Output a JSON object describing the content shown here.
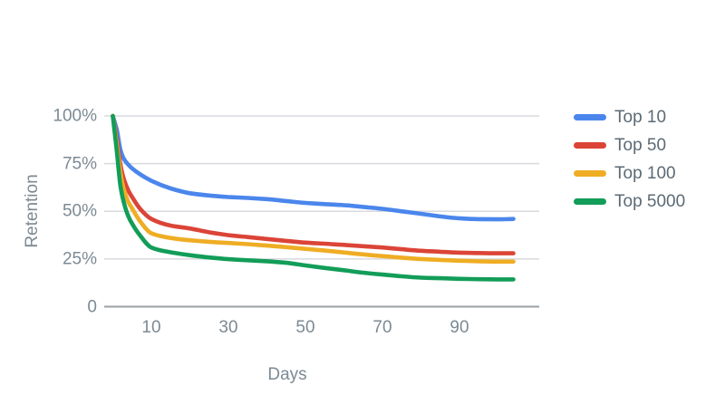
{
  "chart_data": {
    "type": "line",
    "title": "",
    "xlabel": "Days",
    "ylabel": "Retention",
    "grid": true,
    "legend_position": "right",
    "xlim": [
      0,
      110
    ],
    "ylim": [
      0,
      100
    ],
    "xticks": {
      "values": [
        10,
        30,
        50,
        70,
        90
      ],
      "labels": [
        "10",
        "30",
        "50",
        "70",
        "90"
      ]
    },
    "yticks": {
      "values": [
        100,
        75,
        50,
        25,
        0
      ],
      "labels": [
        "100%",
        "75%",
        "50%",
        "25%",
        "0"
      ]
    },
    "x": [
      0,
      1,
      2,
      3,
      4,
      5,
      7,
      10,
      15,
      20,
      25,
      30,
      35,
      40,
      45,
      50,
      55,
      60,
      65,
      70,
      75,
      80,
      85,
      90,
      95,
      100,
      104
    ],
    "series": [
      {
        "name": "Top 10",
        "color": "#4A86EC",
        "values": [
          100,
          93,
          82,
          77,
          74.5,
          72.5,
          69.5,
          66,
          62,
          59.5,
          58.3,
          57.5,
          57,
          56.4,
          55.4,
          54.4,
          53.8,
          53.2,
          52.3,
          51.3,
          50,
          48.7,
          47.3,
          46.3,
          45.9,
          45.8,
          46
        ]
      },
      {
        "name": "Top 50",
        "color": "#DB4437",
        "values": [
          100,
          88,
          74,
          66,
          61,
          57.5,
          51.5,
          46,
          42.5,
          41,
          39,
          37.5,
          36.5,
          35.5,
          34.5,
          33.6,
          33,
          32.4,
          31.7,
          31,
          30.1,
          29.3,
          28.8,
          28.3,
          28.1,
          28,
          28
        ]
      },
      {
        "name": "Top 100",
        "color": "#EFAD24",
        "values": [
          100,
          85,
          70,
          60.5,
          55,
          51.5,
          45,
          38.5,
          36,
          34.8,
          34,
          33.4,
          32.8,
          32,
          31.2,
          30.3,
          29.4,
          28.4,
          27.4,
          26.5,
          25.7,
          25,
          24.5,
          24.1,
          23.8,
          23.6,
          23.6
        ]
      },
      {
        "name": "Top 5000",
        "color": "#129D58",
        "values": [
          100,
          82,
          63,
          53.5,
          47.5,
          43.5,
          37.5,
          31,
          28.5,
          27,
          25.8,
          24.9,
          24.3,
          23.8,
          23,
          21.6,
          20.3,
          19.1,
          17.8,
          16.8,
          15.9,
          15.2,
          14.9,
          14.6,
          14.4,
          14.3,
          14.3
        ]
      }
    ]
  },
  "colors": {
    "axis_line": "#9aa0a6",
    "gridline": "#d8dade",
    "tick_label": "#7c8a94",
    "legend_label": "#5c6a74",
    "background": "#ffffff"
  }
}
